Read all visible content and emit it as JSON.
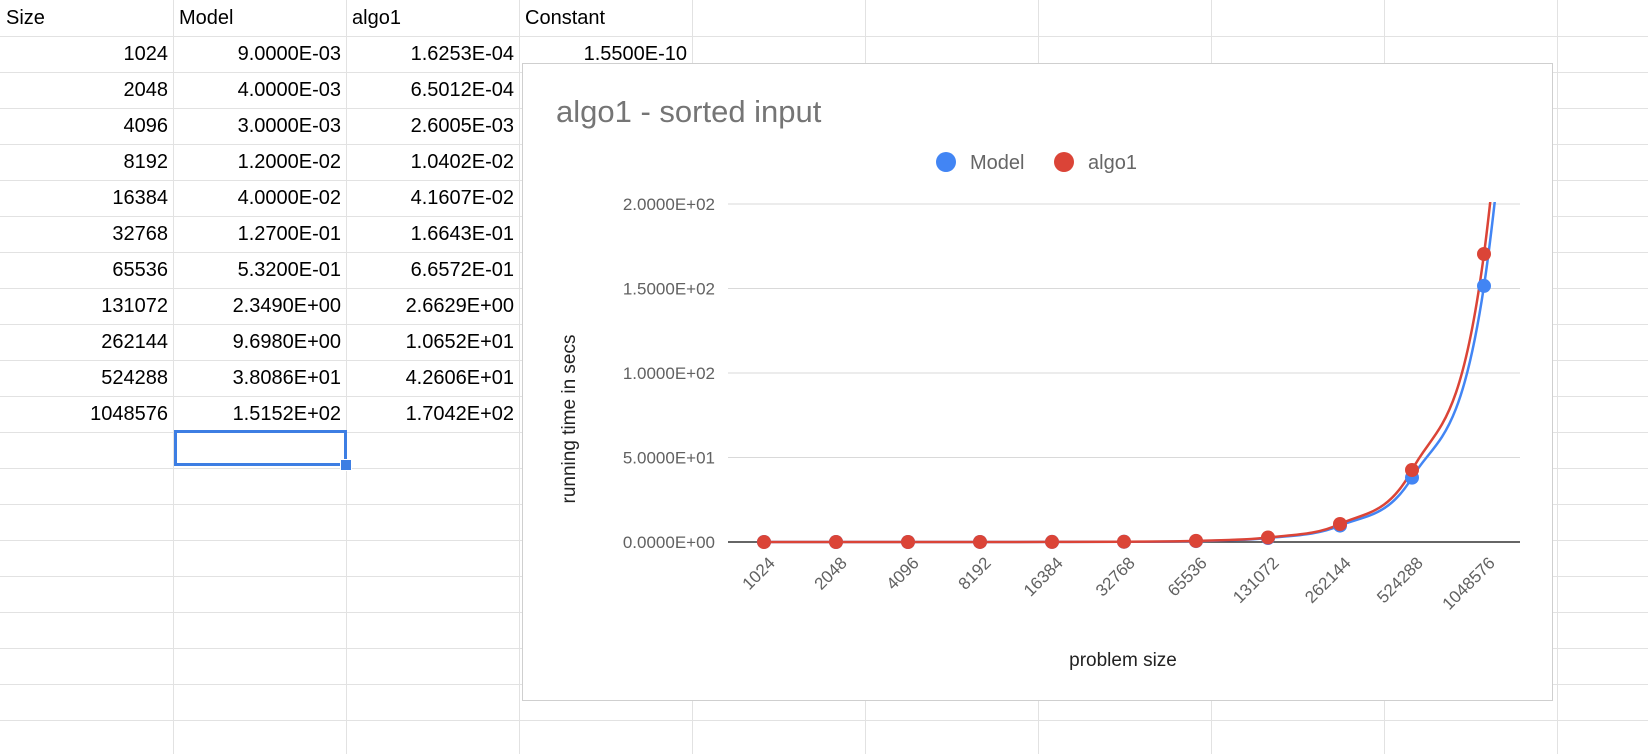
{
  "sheet": {
    "headers": [
      "Size",
      "Model",
      "algo1",
      "Constant"
    ],
    "constant_value": "1.5500E-10",
    "rows": [
      [
        "1024",
        "9.0000E-03",
        "1.6253E-04"
      ],
      [
        "2048",
        "4.0000E-03",
        "6.5012E-04"
      ],
      [
        "4096",
        "3.0000E-03",
        "2.6005E-03"
      ],
      [
        "8192",
        "1.2000E-02",
        "1.0402E-02"
      ],
      [
        "16384",
        "4.0000E-02",
        "4.1607E-02"
      ],
      [
        "32768",
        "1.2700E-01",
        "1.6643E-01"
      ],
      [
        "65536",
        "5.3200E-01",
        "6.6572E-01"
      ],
      [
        "131072",
        "2.3490E+00",
        "2.6629E+00"
      ],
      [
        "262144",
        "9.6980E+00",
        "1.0652E+01"
      ],
      [
        "524288",
        "3.8086E+01",
        "4.2606E+01"
      ],
      [
        "1048576",
        "1.5152E+02",
        "1.7042E+02"
      ]
    ]
  },
  "chart_data": {
    "type": "line",
    "title": "algo1 - sorted input",
    "xlabel": "problem size",
    "ylabel": "running time in secs",
    "categories": [
      "1024",
      "2048",
      "4096",
      "8192",
      "16384",
      "32768",
      "65536",
      "131072",
      "262144",
      "524288",
      "1048576"
    ],
    "series": [
      {
        "name": "Model",
        "color": "#4285f4",
        "values": [
          0.009,
          0.004,
          0.003,
          0.012,
          0.04,
          0.127,
          0.532,
          2.349,
          9.698,
          38.086,
          151.52
        ]
      },
      {
        "name": "algo1",
        "color": "#db4437",
        "values": [
          0.00016253,
          0.00065012,
          0.0026005,
          0.010402,
          0.041607,
          0.16643,
          0.66572,
          2.6629,
          10.652,
          42.606,
          170.42
        ]
      }
    ],
    "y_ticks": [
      "0.0000E+00",
      "5.0000E+01",
      "1.0000E+02",
      "1.5000E+02",
      "2.0000E+02"
    ],
    "y_tick_values": [
      0,
      50,
      100,
      150,
      200
    ],
    "ylim": [
      0,
      200
    ],
    "grid": true,
    "legend": "top-center",
    "smooth_lines": true,
    "markers": "circle"
  }
}
